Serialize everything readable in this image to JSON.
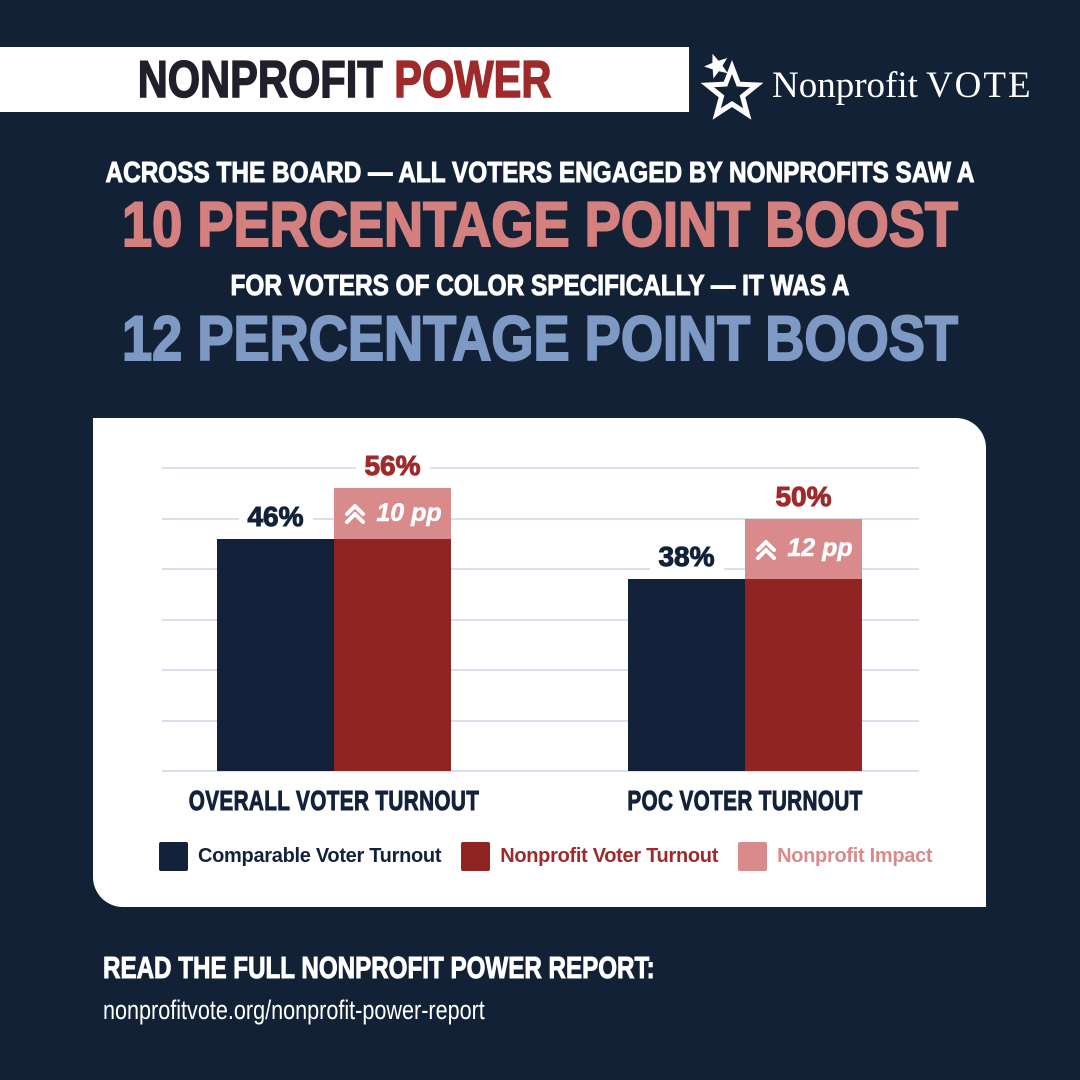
{
  "banner": {
    "title_dark": "NONPROFIT",
    "title_red": " POWER"
  },
  "logo": {
    "name_serif": "Nonprofit",
    "name_caps": "VOTE",
    "icon": "star-icon"
  },
  "headline": {
    "line1": "ACROSS THE BOARD — ALL VOTERS ENGAGED BY NONPROFITS SAW A",
    "line2": "10 PERCENTAGE POINT BOOST",
    "line3": "FOR VOTERS OF COLOR SPECIFICALLY — IT WAS A",
    "line4": "12 PERCENTAGE POINT BOOST"
  },
  "chart_data": {
    "type": "bar",
    "categories": [
      "OVERALL VOTER TURNOUT",
      "POC VOTER TURNOUT"
    ],
    "series": [
      {
        "name": "Comparable Voter Turnout",
        "values": [
          46,
          38
        ],
        "color": "#13213A"
      },
      {
        "name": "Nonprofit Voter Turnout",
        "values": [
          56,
          50
        ],
        "color": "#8F2423"
      },
      {
        "name": "Nonprofit Impact",
        "values": [
          10,
          12
        ],
        "color": "#D98A8B",
        "note": "drawn as top segment of the Nonprofit Voter Turnout bar"
      }
    ],
    "value_labels": [
      [
        "46%",
        "56%"
      ],
      [
        "38%",
        "50%"
      ]
    ],
    "impact_labels": [
      "10 pp",
      "12 pp"
    ],
    "value_suffix": "%",
    "ylim": [
      0,
      60
    ],
    "gridline_step": 10,
    "grid": true,
    "legend_position": "bottom",
    "legend_text_colors": [
      "#13213A",
      "#9E2A2B",
      "#D98A8B"
    ]
  },
  "footer": {
    "heading": "READ THE FULL NONPROFIT POWER REPORT:",
    "url": "nonprofitvote.org/nonprofit-power-report"
  },
  "colors": {
    "background": "#122136",
    "navy": "#13213A",
    "dark_red": "#8F2423",
    "banner_red": "#9E2A2B",
    "banner_dark": "#20202A",
    "pink": "#D98A8B",
    "headline_pink": "#D4807F",
    "steel_blue": "#7E9AC4",
    "gridline": "#D9E0EB",
    "white": "#FFFFFF"
  }
}
